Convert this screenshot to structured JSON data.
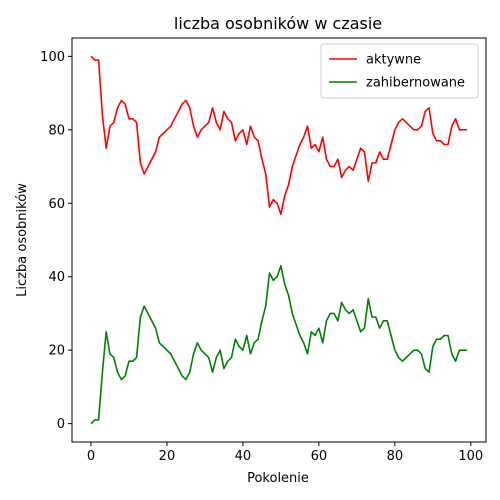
{
  "chart_data": {
    "type": "line",
    "title": "liczba osobników w czasie",
    "xlabel": "Pokolenie",
    "ylabel": "Liczba osobników",
    "xlim": [
      -5,
      104
    ],
    "ylim": [
      -5,
      105
    ],
    "xticks": [
      0,
      20,
      40,
      60,
      80,
      100
    ],
    "yticks": [
      0,
      20,
      40,
      60,
      80,
      100
    ],
    "grid": false,
    "legend_position": "top-right",
    "series": [
      {
        "name": "aktywne",
        "color": "#ff0000",
        "x": [
          0,
          1,
          2,
          3,
          4,
          5,
          6,
          7,
          8,
          9,
          10,
          11,
          12,
          13,
          14,
          15,
          16,
          17,
          18,
          19,
          20,
          21,
          22,
          23,
          24,
          25,
          26,
          27,
          28,
          29,
          30,
          31,
          32,
          33,
          34,
          35,
          36,
          37,
          38,
          39,
          40,
          41,
          42,
          43,
          44,
          45,
          46,
          47,
          48,
          49,
          50,
          51,
          52,
          53,
          54,
          55,
          56,
          57,
          58,
          59,
          60,
          61,
          62,
          63,
          64,
          65,
          66,
          67,
          68,
          69,
          70,
          71,
          72,
          73,
          74,
          75,
          76,
          77,
          78,
          79,
          80,
          81,
          82,
          83,
          84,
          85,
          86,
          87,
          88,
          89,
          90,
          91,
          92,
          93,
          94,
          95,
          96,
          97,
          98,
          99
        ],
        "values": [
          100,
          99,
          99,
          84,
          75,
          81,
          82,
          86,
          88,
          87,
          83,
          83,
          82,
          71,
          68,
          70,
          72,
          74,
          78,
          79,
          80,
          81,
          83,
          85,
          87,
          88,
          86,
          81,
          78,
          80,
          81,
          82,
          86,
          82,
          80,
          85,
          83,
          82,
          77,
          79,
          80,
          76,
          81,
          78,
          77,
          72,
          68,
          59,
          61,
          60,
          57,
          62,
          65,
          70,
          73,
          76,
          78,
          81,
          75,
          76,
          74,
          78,
          72,
          70,
          70,
          72,
          67,
          69,
          70,
          69,
          72,
          75,
          74,
          66,
          71,
          71,
          74,
          72,
          72,
          76,
          80,
          82,
          83,
          82,
          81,
          80,
          80,
          81,
          85,
          86,
          79,
          77,
          77,
          76,
          76,
          81,
          83,
          80,
          80,
          80
        ]
      },
      {
        "name": "zahibernowane",
        "color": "#008000",
        "x": [
          0,
          1,
          2,
          3,
          4,
          5,
          6,
          7,
          8,
          9,
          10,
          11,
          12,
          13,
          14,
          15,
          16,
          17,
          18,
          19,
          20,
          21,
          22,
          23,
          24,
          25,
          26,
          27,
          28,
          29,
          30,
          31,
          32,
          33,
          34,
          35,
          36,
          37,
          38,
          39,
          40,
          41,
          42,
          43,
          44,
          45,
          46,
          47,
          48,
          49,
          50,
          51,
          52,
          53,
          54,
          55,
          56,
          57,
          58,
          59,
          60,
          61,
          62,
          63,
          64,
          65,
          66,
          67,
          68,
          69,
          70,
          71,
          72,
          73,
          74,
          75,
          76,
          77,
          78,
          79,
          80,
          81,
          82,
          83,
          84,
          85,
          86,
          87,
          88,
          89,
          90,
          91,
          92,
          93,
          94,
          95,
          96,
          97,
          98,
          99
        ],
        "values": [
          0,
          1,
          1,
          14,
          25,
          19,
          18,
          14,
          12,
          13,
          17,
          17,
          18,
          29,
          32,
          30,
          28,
          26,
          22,
          21,
          20,
          19,
          17,
          15,
          13,
          12,
          14,
          19,
          22,
          20,
          19,
          18,
          14,
          18,
          20,
          15,
          17,
          18,
          23,
          21,
          20,
          24,
          19,
          22,
          23,
          28,
          32,
          41,
          39,
          40,
          43,
          38,
          35,
          30,
          27,
          24,
          22,
          19,
          25,
          24,
          26,
          22,
          28,
          30,
          30,
          28,
          33,
          31,
          30,
          31,
          28,
          25,
          26,
          34,
          29,
          29,
          26,
          28,
          28,
          24,
          20,
          18,
          17,
          18,
          19,
          20,
          20,
          19,
          15,
          14,
          21,
          23,
          23,
          24,
          24,
          19,
          17,
          20,
          20,
          20
        ]
      }
    ]
  }
}
